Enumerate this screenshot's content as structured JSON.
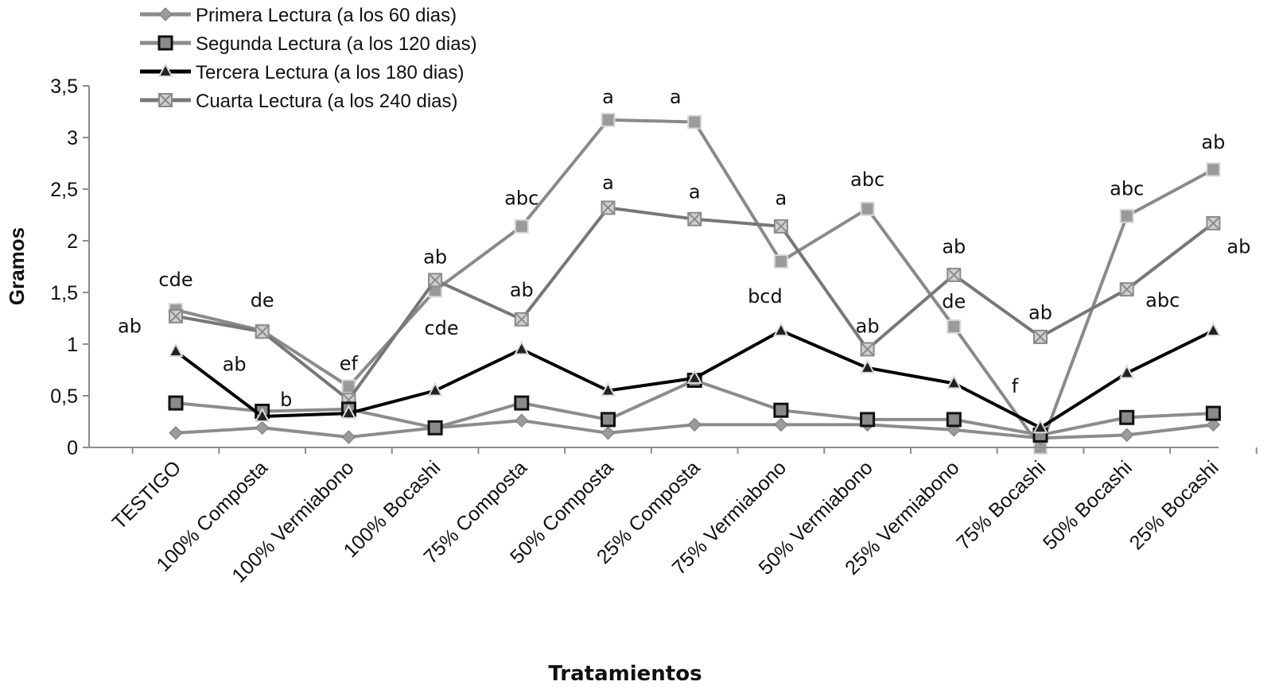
{
  "chart_data": {
    "type": "line",
    "xlabel": "Tratamientos",
    "ylabel": "Gramos",
    "ylim": [
      0,
      3.5
    ],
    "ytick_values": [
      0,
      0.5,
      1,
      1.5,
      2,
      2.5,
      3,
      3.5
    ],
    "ytick_labels": [
      "0",
      "0,5",
      "1",
      "1,5",
      "2",
      "2,5",
      "3",
      "3,5"
    ],
    "grid": false,
    "legend_position": "top-left",
    "categories": [
      "TESTIGO",
      "100%  Composta",
      "100%  Vermiabono",
      "100%  Bocashi",
      "75% Composta",
      "50% Composta",
      "25% Composta",
      "75% Vermiabono",
      "50% Vermiabono",
      "25% Vermiabono",
      "75% Bocashi",
      "50% Bocashi",
      "25% Bocashi"
    ],
    "series": [
      {
        "name": "Primera Lectura (a los 60 dias)",
        "marker": "diamond",
        "color": "#8c8c8c",
        "values": [
          0.14,
          0.19,
          0.1,
          0.19,
          0.26,
          0.14,
          0.22,
          0.22,
          0.22,
          0.17,
          0.09,
          0.12,
          0.22
        ]
      },
      {
        "name": "Segunda Lectura (a los 120 dias)",
        "marker": "square",
        "color": "#8c8c8c",
        "values": [
          0.43,
          0.35,
          0.37,
          0.19,
          0.43,
          0.27,
          0.65,
          0.36,
          0.27,
          0.27,
          0.12,
          0.29,
          0.33
        ]
      },
      {
        "name": "Tercera Lectura (a los 180 dias)",
        "marker": "triangle",
        "color": "#000000",
        "values": [
          0.93,
          0.3,
          0.33,
          0.55,
          0.95,
          0.55,
          0.67,
          1.13,
          0.77,
          0.62,
          0.19,
          0.72,
          1.13
        ]
      },
      {
        "name": "Cuarta Lectura (a los 240 dias)",
        "marker": "xsquare",
        "color": "#777777",
        "values": [
          1.27,
          1.12,
          0.46,
          1.62,
          1.24,
          2.32,
          2.21,
          2.14,
          0.95,
          1.67,
          1.07,
          1.53,
          2.17
        ]
      },
      {
        "name": "upper-series",
        "marker": "square-plain",
        "color": "#8a8a8a",
        "legend": false,
        "values": [
          1.33,
          1.13,
          0.59,
          1.52,
          2.14,
          3.17,
          3.15,
          1.8,
          2.31,
          1.17,
          0.0,
          2.24,
          2.69
        ]
      }
    ],
    "annotations": [
      {
        "cat": 0,
        "y": 1.63,
        "text": "cde",
        "dx": 0
      },
      {
        "cat": 0,
        "y": 1.18,
        "text": "ab",
        "dx": -58
      },
      {
        "cat": 1,
        "y": 1.43,
        "text": "de",
        "dx": 0
      },
      {
        "cat": 1,
        "y": 0.81,
        "text": "ab",
        "dx": -35
      },
      {
        "cat": 1,
        "y": 0.47,
        "text": "b",
        "dx": 30
      },
      {
        "cat": 2,
        "y": 0.82,
        "text": "ef",
        "dx": 0
      },
      {
        "cat": 3,
        "y": 1.85,
        "text": "ab",
        "dx": 0
      },
      {
        "cat": 3,
        "y": 1.16,
        "text": "cde",
        "dx": 8
      },
      {
        "cat": 4,
        "y": 2.42,
        "text": "abc",
        "dx": 0
      },
      {
        "cat": 4,
        "y": 1.53,
        "text": "ab",
        "dx": 0
      },
      {
        "cat": 5,
        "y": 3.4,
        "text": "a",
        "dx": 0
      },
      {
        "cat": 5,
        "y": 2.57,
        "text": "a",
        "dx": 0
      },
      {
        "cat": 6,
        "y": 3.4,
        "text": "a",
        "dx": -24
      },
      {
        "cat": 6,
        "y": 2.48,
        "text": "a",
        "dx": 0
      },
      {
        "cat": 7,
        "y": 2.42,
        "text": "a",
        "dx": 0
      },
      {
        "cat": 7,
        "y": 1.47,
        "text": "bcd",
        "dx": -20
      },
      {
        "cat": 8,
        "y": 2.6,
        "text": "abc",
        "dx": 0
      },
      {
        "cat": 8,
        "y": 1.18,
        "text": "ab",
        "dx": 0
      },
      {
        "cat": 9,
        "y": 1.95,
        "text": "ab",
        "dx": 0
      },
      {
        "cat": 9,
        "y": 1.42,
        "text": "de",
        "dx": 0
      },
      {
        "cat": 10,
        "y": 1.31,
        "text": "ab",
        "dx": 0
      },
      {
        "cat": 10,
        "y": 0.6,
        "text": "f",
        "dx": -32
      },
      {
        "cat": 11,
        "y": 2.51,
        "text": "abc",
        "dx": 0
      },
      {
        "cat": 11,
        "y": 1.43,
        "text": "abc",
        "dx": 45
      },
      {
        "cat": 12,
        "y": 2.96,
        "text": "ab",
        "dx": 0
      },
      {
        "cat": 12,
        "y": 1.95,
        "text": "ab",
        "dx": 32
      }
    ]
  }
}
